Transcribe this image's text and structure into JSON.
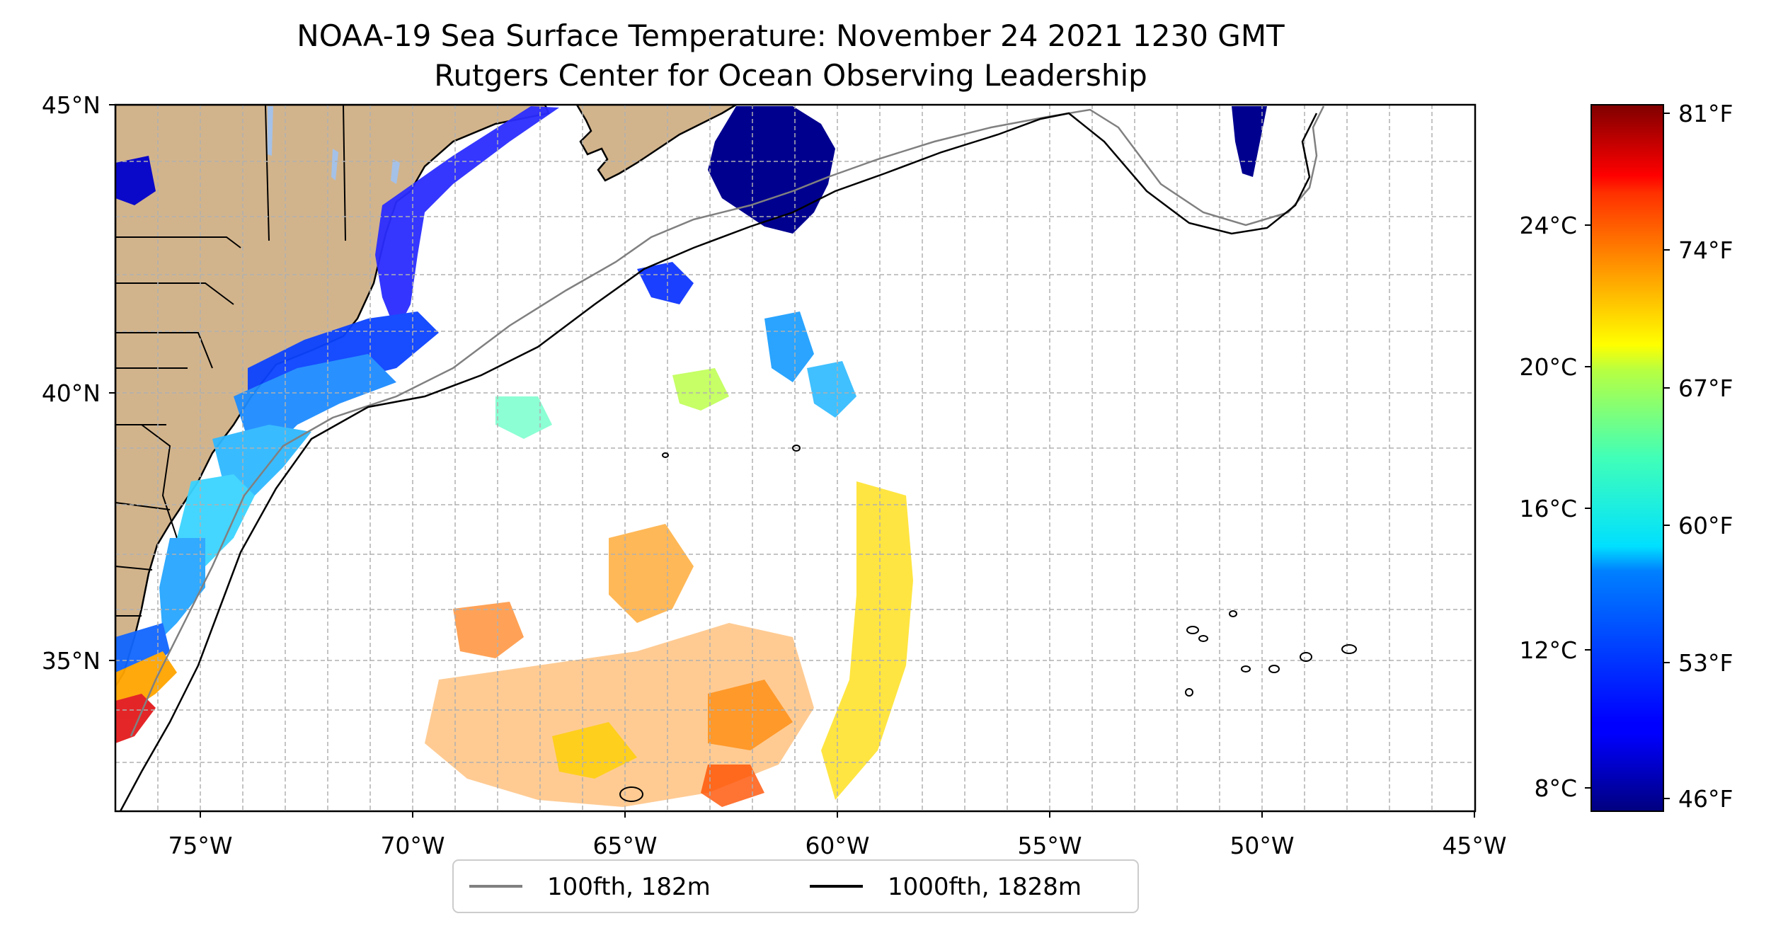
{
  "title": "NOAA-19 Sea Surface Temperature: November 24 2021 1230 GMT",
  "subtitle": "Rutgers Center for Ocean Observing Leadership",
  "map": {
    "type": "sea-surface-temperature-map",
    "lon_range": [
      -77,
      -45
    ],
    "lat_range": [
      32.2,
      45
    ],
    "gridlines": "dashed, every 1 degree",
    "land_color": "#d2b48c",
    "lon_ticks": [
      "75°W",
      "70°W",
      "65°W",
      "60°W",
      "55°W",
      "50°W",
      "45°W"
    ],
    "lat_ticks": [
      "45°N",
      "40°N",
      "35°N"
    ]
  },
  "colorbar": {
    "colormap": "jet",
    "celsius_ticks": [
      "24°C",
      "20°C",
      "16°C",
      "12°C",
      "8°C"
    ],
    "fahrenheit_ticks": [
      "81°F",
      "74°F",
      "67°F",
      "60°F",
      "53°F",
      "46°F"
    ]
  },
  "legend": {
    "items": [
      {
        "label": "100fth, 182m",
        "color": "#808080"
      },
      {
        "label": "1000fth, 1828m",
        "color": "#000000"
      }
    ]
  }
}
